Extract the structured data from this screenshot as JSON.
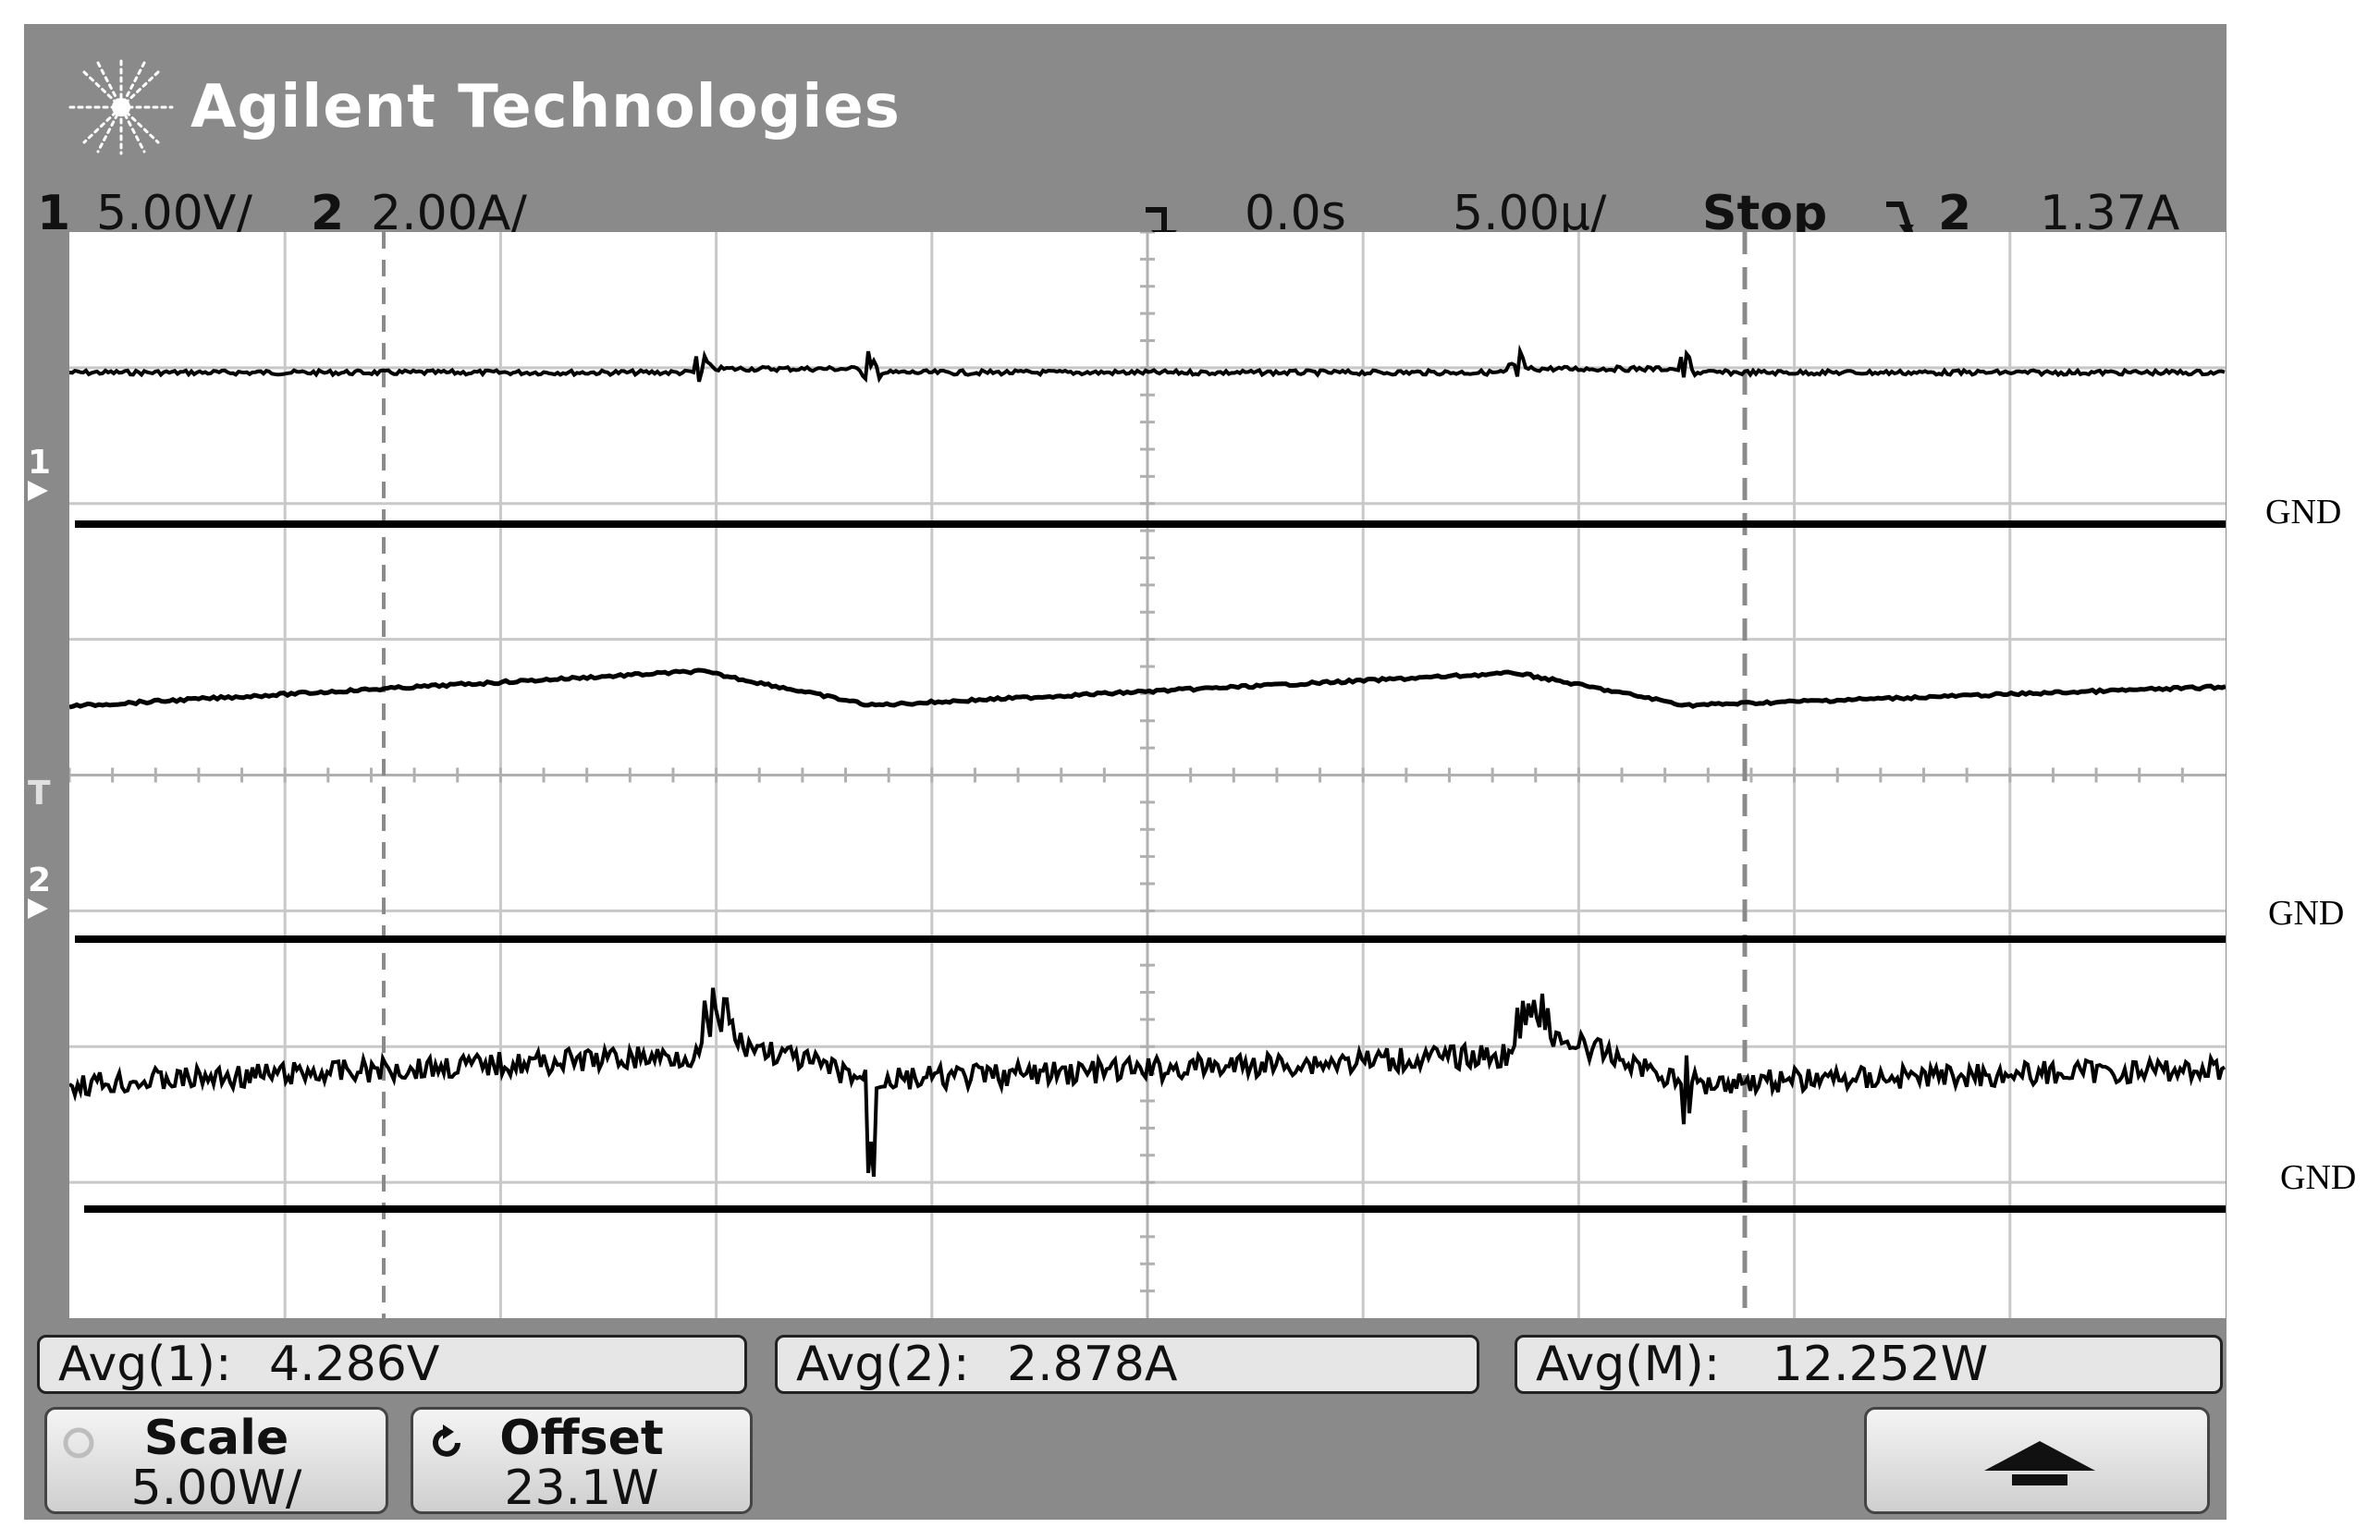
{
  "header": {
    "brand": "Agilent Technologies",
    "logo_icon": "agilent-spark-icon"
  },
  "status_bar": {
    "ch1_number": "1",
    "ch1_scale": "5.00V/",
    "ch2_number": "2",
    "ch2_scale": "2.00A/",
    "trigger_marker_icon": "trigger-position-icon",
    "time_offset": "0.0s",
    "time_scale": "5.00µ/",
    "run_state": "Stop",
    "trigger_slope_icon": "falling-edge-icon",
    "trigger_source": "2",
    "trigger_level": "1.37A"
  },
  "screen": {
    "ch1_marker": "1",
    "ch2_marker": "2",
    "trigger_marker": "T",
    "traces": [
      {
        "id": "ch1",
        "label": "channel 1 voltage"
      },
      {
        "id": "ch2",
        "label": "channel 2 current"
      },
      {
        "id": "math",
        "label": "math power"
      }
    ]
  },
  "measurements": [
    {
      "label": "Avg(1):",
      "value": "4.286V"
    },
    {
      "label": "Avg(2):",
      "value": "2.878A"
    },
    {
      "label": "Avg(M):",
      "value": "12.252W"
    }
  ],
  "softkeys": {
    "scale_title": "Scale",
    "scale_value": "5.00W/",
    "offset_title": "Offset",
    "offset_value": "23.1W",
    "up_arrow_icon": "up-arrow-icon"
  },
  "annotations": {
    "gnd_1": "GND",
    "gnd_2": "GND",
    "gnd_3": "GND"
  },
  "colors": {
    "bezel": "#8a8a8a",
    "screen": "#ffffff",
    "trace": "#000000",
    "grid": "#c8c8c8"
  }
}
